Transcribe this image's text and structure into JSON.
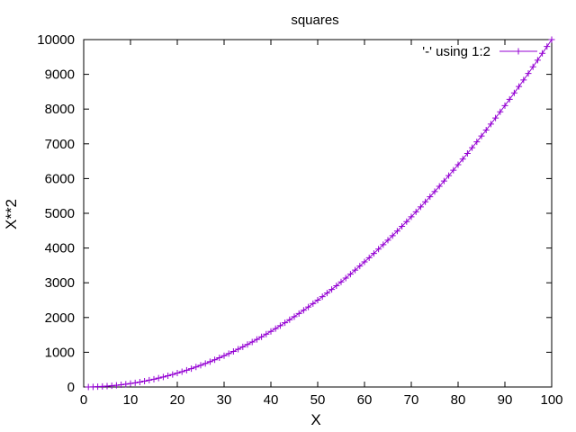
{
  "chart_data": {
    "type": "line",
    "title": "squares",
    "xlabel": "X",
    "ylabel": "X**2",
    "xlim": [
      0,
      100
    ],
    "ylim": [
      0,
      10000
    ],
    "x_ticks": [
      0,
      10,
      20,
      30,
      40,
      50,
      60,
      70,
      80,
      90,
      100
    ],
    "y_ticks": [
      0,
      1000,
      2000,
      3000,
      4000,
      5000,
      6000,
      7000,
      8000,
      9000,
      10000
    ],
    "grid": false,
    "legend_position": "top-right",
    "series": [
      {
        "name": "'-' using 1:2",
        "color": "#9400d3",
        "marker": "plus",
        "x": [
          1,
          2,
          3,
          4,
          5,
          6,
          7,
          8,
          9,
          10,
          11,
          12,
          13,
          14,
          15,
          16,
          17,
          18,
          19,
          20,
          21,
          22,
          23,
          24,
          25,
          26,
          27,
          28,
          29,
          30,
          31,
          32,
          33,
          34,
          35,
          36,
          37,
          38,
          39,
          40,
          41,
          42,
          43,
          44,
          45,
          46,
          47,
          48,
          49,
          50,
          51,
          52,
          53,
          54,
          55,
          56,
          57,
          58,
          59,
          60,
          61,
          62,
          63,
          64,
          65,
          66,
          67,
          68,
          69,
          70,
          71,
          72,
          73,
          74,
          75,
          76,
          77,
          78,
          79,
          80,
          81,
          82,
          83,
          84,
          85,
          86,
          87,
          88,
          89,
          90,
          91,
          92,
          93,
          94,
          95,
          96,
          97,
          98,
          99,
          100
        ],
        "y": [
          1,
          4,
          9,
          16,
          25,
          36,
          49,
          64,
          81,
          100,
          121,
          144,
          169,
          196,
          225,
          256,
          289,
          324,
          361,
          400,
          441,
          484,
          529,
          576,
          625,
          676,
          729,
          784,
          841,
          900,
          961,
          1024,
          1089,
          1156,
          1225,
          1296,
          1369,
          1444,
          1521,
          1600,
          1681,
          1764,
          1849,
          1936,
          2025,
          2116,
          2209,
          2304,
          2401,
          2500,
          2601,
          2704,
          2809,
          2916,
          3025,
          3136,
          3249,
          3364,
          3481,
          3600,
          3721,
          3844,
          3969,
          4096,
          4225,
          4356,
          4489,
          4624,
          4761,
          4900,
          5041,
          5184,
          5329,
          5476,
          5625,
          5776,
          5929,
          6084,
          6241,
          6400,
          6561,
          6724,
          6889,
          7056,
          7225,
          7396,
          7569,
          7744,
          7921,
          8100,
          8281,
          8464,
          8649,
          8836,
          9025,
          9216,
          9409,
          9604,
          9801,
          10000
        ]
      }
    ]
  }
}
